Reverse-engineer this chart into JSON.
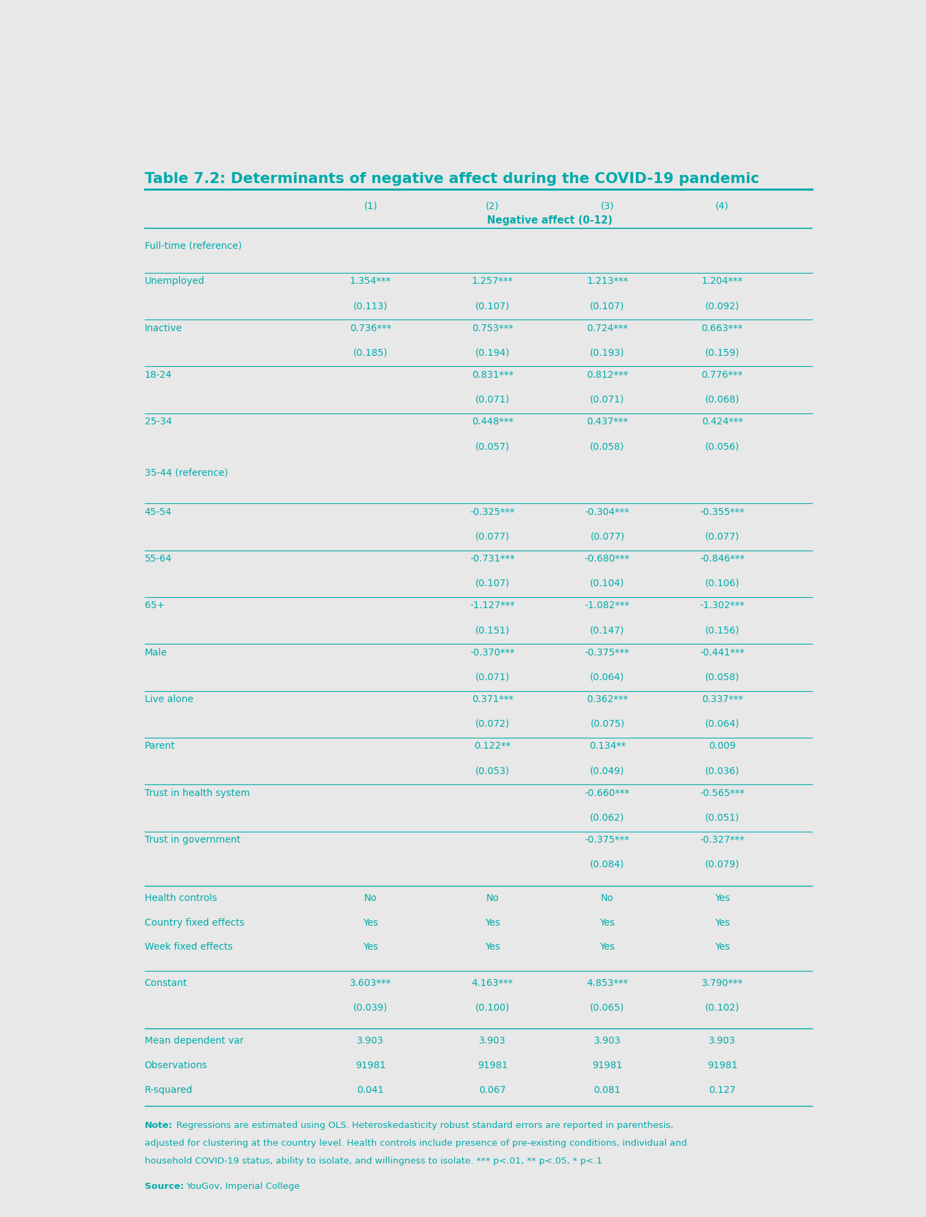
{
  "title": "Table 7.2: Determinants of negative affect during the COVID-19 pandemic",
  "title_color": "#00AAAA",
  "background_color": "#E8E8E8",
  "teal_color": "#00AAAA",
  "line_color": "#00AAAA",
  "col_headers": [
    "(1)",
    "(2)",
    "(3)",
    "(4)"
  ],
  "sub_header": "Negative affect (0-12)",
  "rows": [
    {
      "label": "Full-time (reference)",
      "values": [
        "",
        "",
        "",
        ""
      ],
      "is_ref": true
    },
    {
      "label": "Unemployed",
      "values": [
        "1.354***",
        "1.257***",
        "1.213***",
        "1.204***"
      ],
      "is_ref": false
    },
    {
      "label": "",
      "values": [
        "(0.113)",
        "(0.107)",
        "(0.107)",
        "(0.092)"
      ],
      "is_se": true
    },
    {
      "label": "Inactive",
      "values": [
        "0.736***",
        "0.753***",
        "0.724***",
        "0.663***"
      ],
      "is_ref": false
    },
    {
      "label": "",
      "values": [
        "(0.185)",
        "(0.194)",
        "(0.193)",
        "(0.159)"
      ],
      "is_se": true
    },
    {
      "label": "18-24",
      "values": [
        "",
        "0.831***",
        "0.812***",
        "0.776***"
      ],
      "is_ref": false
    },
    {
      "label": "",
      "values": [
        "",
        "(0.071)",
        "(0.071)",
        "(0.068)"
      ],
      "is_se": true
    },
    {
      "label": "25-34",
      "values": [
        "",
        "0.448***",
        "0.437***",
        "0.424***"
      ],
      "is_ref": false
    },
    {
      "label": "",
      "values": [
        "",
        "(0.057)",
        "(0.058)",
        "(0.056)"
      ],
      "is_se": true
    },
    {
      "label": "35-44 (reference)",
      "values": [
        "",
        "",
        "",
        ""
      ],
      "is_ref": true
    },
    {
      "label": "45-54",
      "values": [
        "",
        "-0.325***",
        "-0.304***",
        "-0.355***"
      ],
      "is_ref": false
    },
    {
      "label": "",
      "values": [
        "",
        "(0.077)",
        "(0.077)",
        "(0.077)"
      ],
      "is_se": true
    },
    {
      "label": "55-64",
      "values": [
        "",
        "-0.731***",
        "-0.680***",
        "-0.846***"
      ],
      "is_ref": false
    },
    {
      "label": "",
      "values": [
        "",
        "(0.107)",
        "(0.104)",
        "(0.106)"
      ],
      "is_se": true
    },
    {
      "label": "65+",
      "values": [
        "",
        "-1.127***",
        "-1.082***",
        "-1.302***"
      ],
      "is_ref": false
    },
    {
      "label": "",
      "values": [
        "",
        "(0.151)",
        "(0.147)",
        "(0.156)"
      ],
      "is_se": true
    },
    {
      "label": "Male",
      "values": [
        "",
        "-0.370***",
        "-0.375***",
        "-0.441***"
      ],
      "is_ref": false
    },
    {
      "label": "",
      "values": [
        "",
        "(0.071)",
        "(0.064)",
        "(0.058)"
      ],
      "is_se": true
    },
    {
      "label": "Live alone",
      "values": [
        "",
        "0.371***",
        "0.362***",
        "0.337***"
      ],
      "is_ref": false
    },
    {
      "label": "",
      "values": [
        "",
        "(0.072)",
        "(0.075)",
        "(0.064)"
      ],
      "is_se": true
    },
    {
      "label": "Parent",
      "values": [
        "",
        "0.122**",
        "0.134**",
        "0.009"
      ],
      "is_ref": false
    },
    {
      "label": "",
      "values": [
        "",
        "(0.053)",
        "(0.049)",
        "(0.036)"
      ],
      "is_se": true
    },
    {
      "label": "Trust in health system",
      "values": [
        "",
        "",
        "-0.660***",
        "-0.565***"
      ],
      "is_ref": false
    },
    {
      "label": "",
      "values": [
        "",
        "",
        "(0.062)",
        "(0.051)"
      ],
      "is_se": true
    },
    {
      "label": "Trust in government",
      "values": [
        "",
        "",
        "-0.375***",
        "-0.327***"
      ],
      "is_ref": false
    },
    {
      "label": "",
      "values": [
        "",
        "",
        "(0.084)",
        "(0.079)"
      ],
      "is_se": true
    },
    {
      "label": "Health controls",
      "values": [
        "No",
        "No",
        "No",
        "Yes"
      ],
      "is_ref": false
    },
    {
      "label": "Country fixed effects",
      "values": [
        "Yes",
        "Yes",
        "Yes",
        "Yes"
      ],
      "is_ref": false
    },
    {
      "label": "Week fixed effects",
      "values": [
        "Yes",
        "Yes",
        "Yes",
        "Yes"
      ],
      "is_ref": false
    },
    {
      "label": "Constant",
      "values": [
        "3.603***",
        "4.163***",
        "4.853***",
        "3.790***"
      ],
      "is_ref": false
    },
    {
      "label": "",
      "values": [
        "(0.039)",
        "(0.100)",
        "(0.065)",
        "(0.102)"
      ],
      "is_se": true
    },
    {
      "label": "Mean dependent var",
      "values": [
        "3.903",
        "3.903",
        "3.903",
        "3.903"
      ],
      "is_ref": false
    },
    {
      "label": "Observations",
      "values": [
        "91981",
        "91981",
        "91981",
        "91981"
      ],
      "is_ref": false
    },
    {
      "label": "R-squared",
      "values": [
        "0.041",
        "0.067",
        "0.081",
        "0.127"
      ],
      "is_ref": false
    }
  ],
  "note_bold": "Note:",
  "note_lines": [
    "Regressions are estimated using OLS. Heteroskedasticity robust standard errors are reported in parenthesis,",
    "adjusted for clustering at the country level. Health controls include presence of pre-existing conditions, individual and",
    "household COVID-19 status, ability to isolate, and willingness to isolate. *** p<.01, ** p<.05, * p<.1"
  ],
  "source_bold": "Source:",
  "source_text": "YouGov, Imperial College"
}
